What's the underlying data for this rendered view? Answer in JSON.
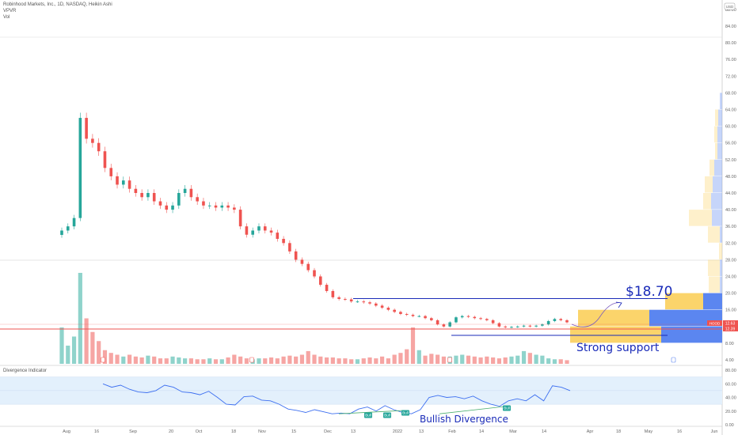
{
  "header": {
    "title": "Robinhood Markets, Inc., 1D, NASDAQ, Heikin Ashi",
    "indicator1": "VPVR",
    "indicator2": "Vol",
    "currency": "USD"
  },
  "lower_pane": {
    "title": "Divergence Indicator"
  },
  "colors": {
    "up": "#26a69a",
    "down": "#ef5350",
    "vol_up": "#8fd3cb",
    "vol_down": "#f6a5a3",
    "vpvr_up": "#fbd46b",
    "vpvr_down": "#5b86f0",
    "annotation": "#1a2bb8",
    "osc_line": "#3d6ff0",
    "div_line": "#4caf70"
  },
  "chart_data": [
    {
      "type": "candlestick",
      "style": "Heikin Ashi",
      "price_axis": {
        "ticks": [
          "88.00",
          "84.00",
          "80.00",
          "76.00",
          "72.00",
          "68.00",
          "64.00",
          "60.00",
          "56.00",
          "52.00",
          "48.00",
          "44.00",
          "40.00",
          "36.00",
          "32.00",
          "28.00",
          "24.00",
          "20.00",
          "16.00",
          "8.00",
          "4.00"
        ],
        "ylim": [
          3,
          88
        ]
      },
      "time_axis": {
        "ticks": [
          "Aug",
          "16",
          "Sep",
          "20",
          "Oct",
          "18",
          "Nov",
          "15",
          "Dec",
          "13",
          "2022",
          "13",
          "Feb",
          "14",
          "Mar",
          "14",
          "Apr",
          "18",
          "May",
          "16",
          "Jun"
        ]
      },
      "closes": [
        35,
        36,
        38,
        62,
        57,
        56,
        54,
        50,
        48,
        46,
        47,
        45,
        44,
        43,
        44,
        42,
        41,
        40,
        41,
        44,
        45,
        43,
        42,
        41,
        41,
        40.5,
        41,
        40.5,
        40,
        36,
        34,
        35,
        36,
        35,
        34.5,
        33,
        32,
        30,
        28,
        27,
        25.5,
        24,
        22,
        20.5,
        19,
        18.6,
        18.5,
        18,
        18,
        17.8,
        17.5,
        17,
        16.5,
        16,
        15.5,
        15,
        14.8,
        14.5,
        14.5,
        14,
        13.5,
        12.5,
        12,
        13,
        14.2,
        14.5,
        14.3,
        14,
        13.8,
        13.5,
        12.8,
        12,
        11.8,
        11.9,
        12,
        12.2,
        12,
        12.2,
        12.5,
        13.3,
        13.8,
        13.5,
        13
      ],
      "volume": [
        40,
        20,
        30,
        100,
        50,
        35,
        25,
        15,
        12,
        10,
        8,
        10,
        8,
        7,
        9,
        8,
        6,
        6,
        8,
        7,
        6,
        6,
        5,
        5,
        6,
        5,
        5,
        7,
        10,
        8,
        6,
        5,
        6,
        6,
        7,
        6,
        8,
        9,
        8,
        10,
        14,
        10,
        8,
        7,
        7,
        6,
        6,
        5,
        5,
        6,
        7,
        6,
        8,
        6,
        10,
        12,
        16,
        40,
        15,
        9,
        11,
        10,
        8,
        8,
        9,
        10,
        9,
        8,
        7,
        8,
        7,
        6,
        7,
        8,
        9,
        14,
        12,
        10,
        9,
        6,
        5,
        5,
        4
      ],
      "price_labels": {
        "symbol": "HOOD",
        "last": "12.63",
        "prev": "12.39"
      },
      "vpvr": [
        {
          "low": 64,
          "high": 68,
          "up": 0,
          "down": 3
        },
        {
          "low": 60,
          "high": 64,
          "up": 4,
          "down": 5
        },
        {
          "low": 56,
          "high": 60,
          "up": 4,
          "down": 6
        },
        {
          "low": 52,
          "high": 56,
          "up": 3,
          "down": 6
        },
        {
          "low": 48,
          "high": 52,
          "up": 6,
          "down": 10
        },
        {
          "low": 44,
          "high": 48,
          "up": 10,
          "down": 12
        },
        {
          "low": 40,
          "high": 44,
          "up": 10,
          "down": 14
        },
        {
          "low": 36,
          "high": 40,
          "up": 29,
          "down": 13
        },
        {
          "low": 32,
          "high": 36,
          "up": 15,
          "down": 3
        },
        {
          "low": 28,
          "high": 32,
          "up": 4,
          "down": 0
        },
        {
          "low": 24,
          "high": 28,
          "up": 15,
          "down": 3
        },
        {
          "low": 20,
          "high": 24,
          "up": 14,
          "down": 3
        },
        {
          "low": 16,
          "high": 20,
          "up": 48,
          "down": 24
        },
        {
          "low": 12,
          "high": 16,
          "up": 90,
          "down": 92
        },
        {
          "low": 8,
          "high": 12,
          "up": 115,
          "down": 77
        }
      ],
      "levels": {
        "target": 18.7,
        "support": 9.9,
        "red_line": 11.4
      }
    },
    {
      "type": "line",
      "name": "Divergence Indicator",
      "yaxis_ticks": [
        "80.00",
        "60.00",
        "40.00",
        "20.00",
        "0.00"
      ],
      "ylim": [
        0,
        80
      ],
      "band": [
        30,
        70
      ],
      "midline": 50,
      "values": [
        60,
        55,
        58,
        52,
        48,
        47,
        50,
        58,
        55,
        48,
        47,
        44,
        49,
        40,
        30,
        29,
        41,
        42,
        36,
        35,
        30,
        23,
        21,
        18,
        22,
        19,
        16,
        17,
        16,
        23,
        26,
        20,
        28,
        22,
        18,
        16,
        22,
        40,
        43,
        40,
        41,
        38,
        42,
        35,
        30,
        27,
        35,
        38,
        35,
        44,
        35,
        57,
        55,
        50
      ],
      "signals": [
        "Bull",
        "Bull",
        "Bull",
        "Bull"
      ]
    }
  ],
  "annotations": {
    "target_label": "$18.70",
    "support_label": "Strong support",
    "divergence_label": "Bullish Divergence"
  }
}
